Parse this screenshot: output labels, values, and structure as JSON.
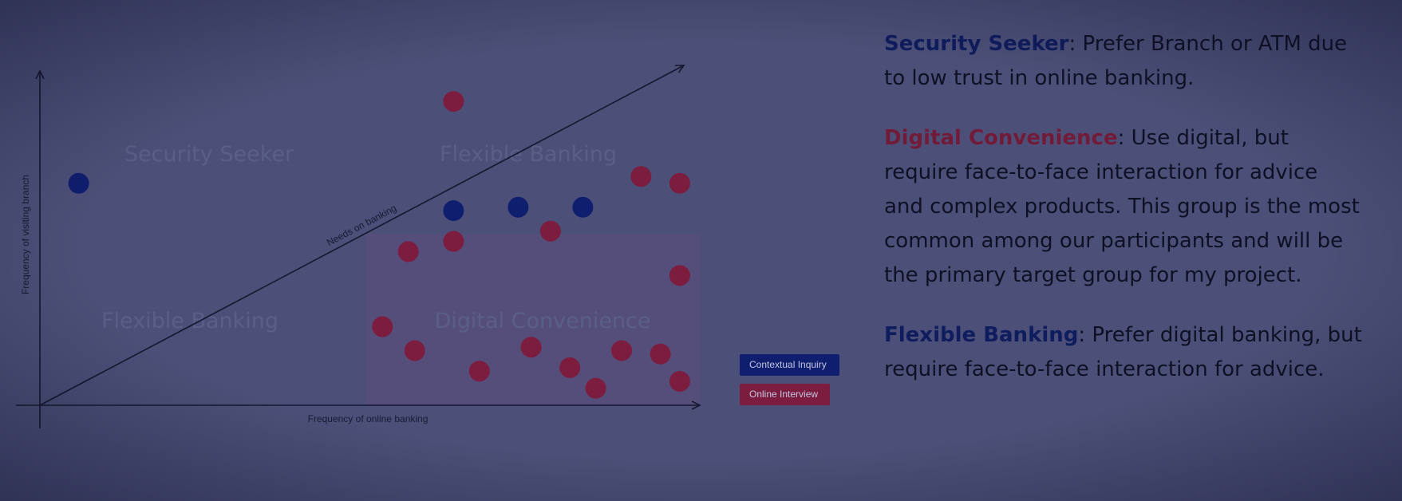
{
  "chart_data": {
    "type": "scatter",
    "xlabel": "Frequency of online banking",
    "ylabel": "Frequency of visiting branch",
    "xlim": [
      0,
      100
    ],
    "ylim": [
      0,
      100
    ],
    "grid": false,
    "legend_position": "right",
    "diagonal_label": "Needs on banking",
    "quadrant_labels": [
      "Security Seeker",
      "Flexible Banking",
      "Flexible Banking",
      "Digital Convenience"
    ],
    "series": [
      {
        "name": "Contextual Inquiry",
        "color": "#0f1e6e",
        "points": [
          [
            6,
            65
          ],
          [
            64,
            57
          ],
          [
            74,
            58
          ],
          [
            84,
            58
          ]
        ]
      },
      {
        "name": "Online Interview",
        "color": "#7c1c3f",
        "points": [
          [
            64,
            89
          ],
          [
            93,
            67
          ],
          [
            99,
            65
          ],
          [
            57,
            45
          ],
          [
            64,
            48
          ],
          [
            79,
            51
          ],
          [
            99,
            38
          ],
          [
            53,
            23
          ],
          [
            58,
            16
          ],
          [
            68,
            10
          ],
          [
            76,
            17
          ],
          [
            86,
            5
          ],
          [
            82,
            11
          ],
          [
            90,
            16
          ],
          [
            96,
            15
          ],
          [
            99,
            7
          ]
        ]
      }
    ]
  },
  "text": [
    {
      "term": "Security Seeker",
      "rest": ": Prefer Branch or ATM due to low trust in online banking.",
      "color": "#0f1c5e"
    },
    {
      "term": "Digital Convenience",
      "rest": ": Use digital, but require face-to-face interaction for advice and complex products. This group is the most common among our participants and will be the primary target group for my project.",
      "color": "#721b38"
    },
    {
      "term": "Flexible Banking",
      "rest": ": Prefer digital banking, but require face-to-face interaction for advice.",
      "color": "#0f1c5e"
    }
  ]
}
